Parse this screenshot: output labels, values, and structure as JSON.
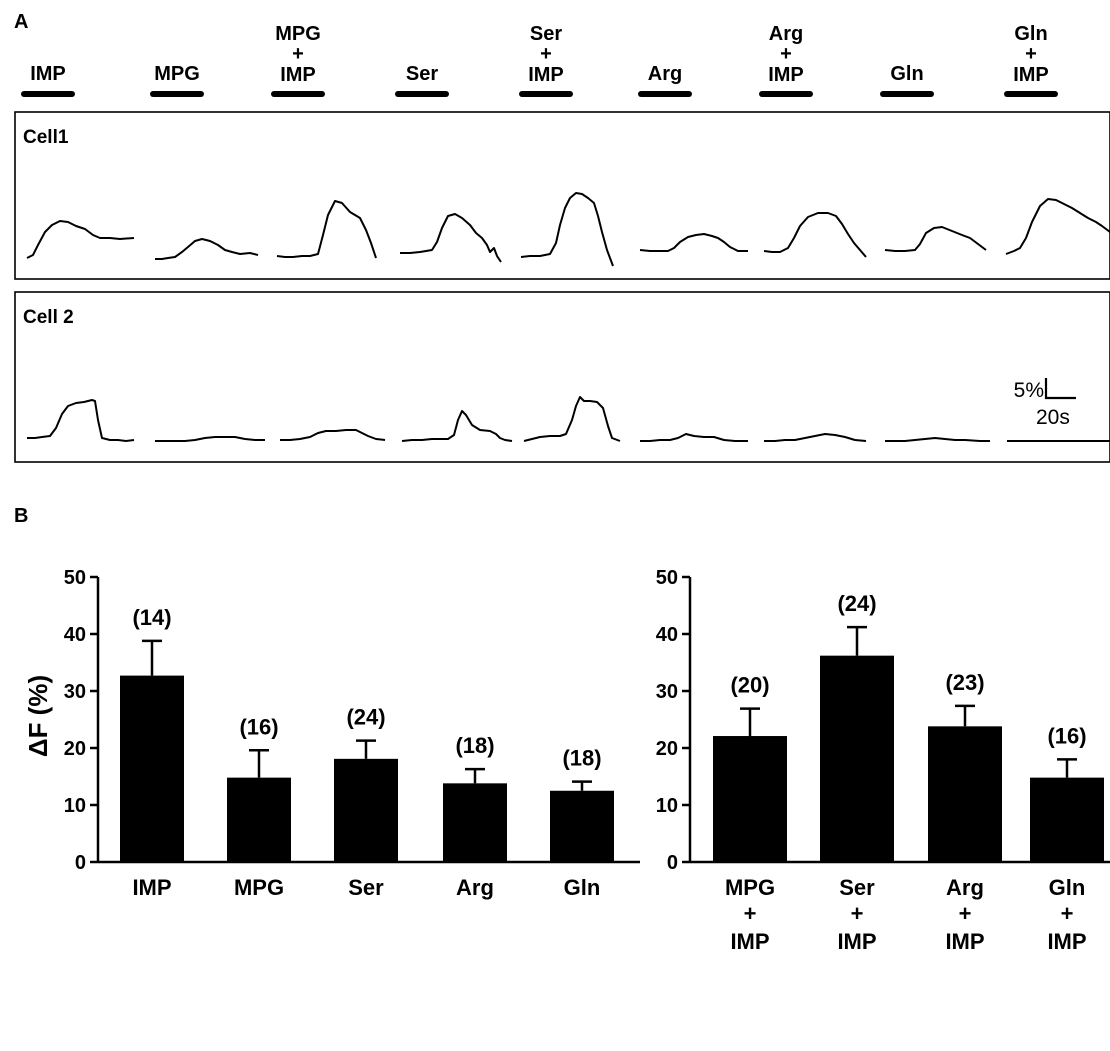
{
  "panel_a": {
    "letter": "A",
    "stimuli": [
      {
        "line1": "",
        "plus": "",
        "line2": "IMP"
      },
      {
        "line1": "",
        "plus": "",
        "line2": "MPG"
      },
      {
        "line1": "MPG",
        "plus": "+",
        "line2": "IMP"
      },
      {
        "line1": "",
        "plus": "",
        "line2": "Ser"
      },
      {
        "line1": "Ser",
        "plus": "+",
        "line2": "IMP"
      },
      {
        "line1": "",
        "plus": "",
        "line2": "Arg"
      },
      {
        "line1": "Arg",
        "plus": "+",
        "line2": "IMP"
      },
      {
        "line1": "",
        "plus": "",
        "line2": "Gln"
      },
      {
        "line1": "Gln",
        "plus": "+",
        "line2": "IMP"
      }
    ],
    "cells": [
      {
        "label": "Cell1"
      },
      {
        "label": "Cell 2"
      }
    ],
    "scale_bar": {
      "y_label": "5%",
      "x_label": "20s"
    }
  },
  "chart_data": [
    {
      "type": "bar",
      "panel": "B",
      "ylabel": "ΔF (%)",
      "ylim": [
        0,
        50
      ],
      "yticks": [
        "0",
        "10",
        "20",
        "30",
        "40",
        "50"
      ],
      "categories": [
        {
          "line1": "IMP",
          "plus": "",
          "line2": ""
        },
        {
          "line1": "MPG",
          "plus": "",
          "line2": ""
        },
        {
          "line1": "Ser",
          "plus": "",
          "line2": ""
        },
        {
          "line1": "Arg",
          "plus": "",
          "line2": ""
        },
        {
          "line1": "Gln",
          "plus": "",
          "line2": ""
        }
      ],
      "values": [
        32.7,
        14.8,
        18.1,
        13.8,
        12.5
      ],
      "errors": [
        6.1,
        4.8,
        3.2,
        2.5,
        1.6
      ],
      "n_labels": [
        "(14)",
        "(16)",
        "(24)",
        "(18)",
        "(18)"
      ]
    },
    {
      "type": "bar",
      "panel": "B",
      "ylabel": "",
      "ylim": [
        0,
        50
      ],
      "yticks": [
        "0",
        "10",
        "20",
        "30",
        "40",
        "50"
      ],
      "categories": [
        {
          "line1": "MPG",
          "plus": "+",
          "line2": "IMP"
        },
        {
          "line1": "Ser",
          "plus": "+",
          "line2": "IMP"
        },
        {
          "line1": "Arg",
          "plus": "+",
          "line2": "IMP"
        },
        {
          "line1": "Gln",
          "plus": "+",
          "line2": "IMP"
        }
      ],
      "values": [
        22.1,
        36.2,
        23.8,
        14.8
      ],
      "errors": [
        4.8,
        5.0,
        3.6,
        3.2
      ],
      "n_labels": [
        "(20)",
        "(24)",
        "(23)",
        "(16)"
      ]
    }
  ]
}
